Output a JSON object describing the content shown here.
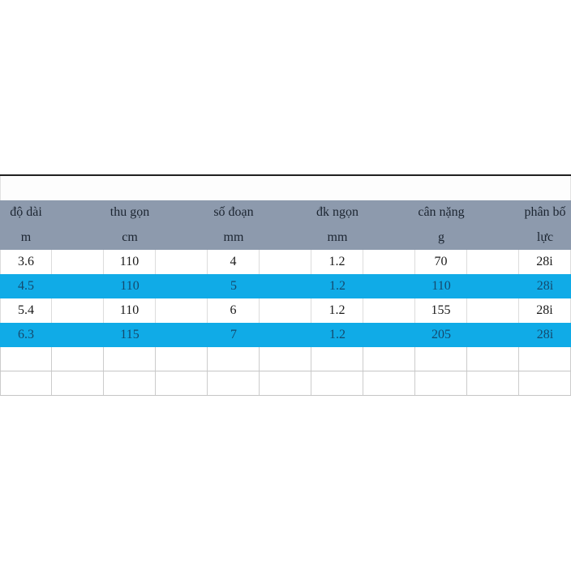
{
  "table": {
    "columns": [
      {
        "name": "độ dài",
        "unit": "m"
      },
      {
        "name": "thu gọn",
        "unit": "cm"
      },
      {
        "name": "số đoạn",
        "unit": "mm"
      },
      {
        "name": "đk ngọn",
        "unit": "mm"
      },
      {
        "name": "cân nặng",
        "unit": "g"
      },
      {
        "name": "phân bố",
        "unit": "lực"
      }
    ],
    "rows": [
      {
        "highlight": false,
        "cells": [
          "3.6",
          "110",
          "4",
          "1.2",
          "70",
          "28i"
        ]
      },
      {
        "highlight": true,
        "cells": [
          "4.5",
          "110",
          "5",
          "1.2",
          "110",
          "28i"
        ]
      },
      {
        "highlight": false,
        "cells": [
          "5.4",
          "110",
          "6",
          "1.2",
          "155",
          "28i"
        ]
      },
      {
        "highlight": true,
        "cells": [
          "6.3",
          "115",
          "7",
          "1.2",
          "205",
          "28i"
        ]
      }
    ],
    "empty_row_count": 2
  },
  "colors": {
    "header_bg": "#8d9aad",
    "header_text": "#1c2531",
    "highlight_bg": "#10abe7",
    "highlight_text": "#15496d",
    "body_text": "#1b1b1b",
    "top_border": "#212121",
    "grid_line": "#cccccc"
  }
}
